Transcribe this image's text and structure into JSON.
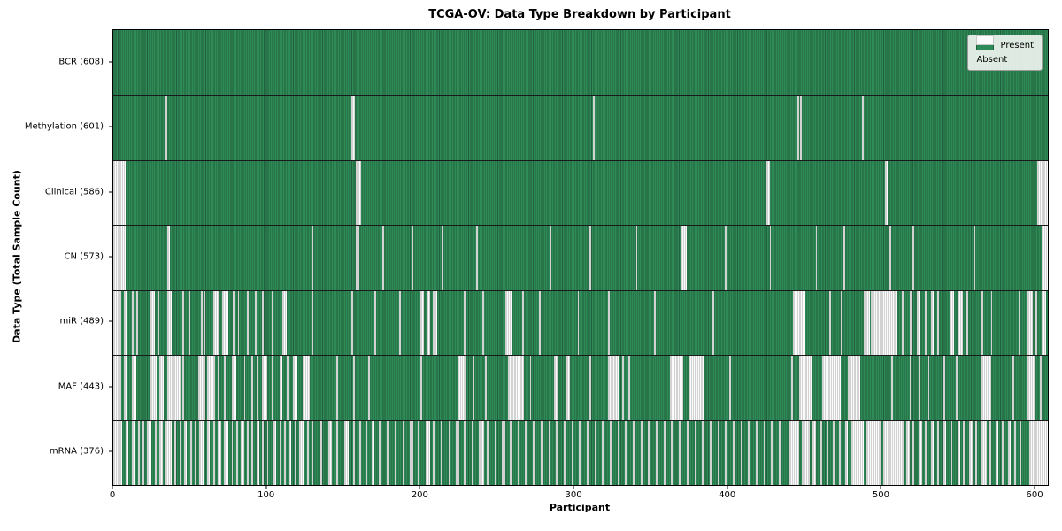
{
  "title": "TCGA-OV: Data Type Breakdown by Participant",
  "axes": {
    "xlabel": "Participant",
    "ylabel": "Data Type (Total Sample Count)",
    "x_ticks": [
      "0",
      "100",
      "200",
      "300",
      "400",
      "500",
      "600"
    ],
    "x_tick_values": [
      0,
      100,
      200,
      300,
      400,
      500,
      600
    ],
    "x_max": 608
  },
  "legend": {
    "items": [
      {
        "label": "Present",
        "color": "#2e8b57"
      },
      {
        "label": "Absent",
        "color": "#ffffff"
      }
    ]
  },
  "colors": {
    "present": "#2e8b57",
    "present_edge": "#215f3e",
    "absent": "#fbfbfb",
    "absent_edge": "#a8a8a8",
    "row_separator": "#1a1a1a",
    "spine": "#000000"
  },
  "chart_data": {
    "type": "heatmap",
    "title": "TCGA-OV: Data Type Breakdown by Participant",
    "xlabel": "Participant",
    "ylabel": "Data Type (Total Sample Count)",
    "x_range": [
      0,
      608
    ],
    "total_participants": 608,
    "legend": [
      "Present",
      "Absent"
    ],
    "legend_position": "upper right",
    "rows": [
      {
        "name": "BCR",
        "label": "BCR (608)",
        "present_count": 608,
        "absent_count": 0,
        "absent_runs": []
      },
      {
        "name": "Methylation",
        "label": "Methylation (601)",
        "present_count": 601,
        "absent_count": 7,
        "absent_runs": [
          [
            34,
            1
          ],
          [
            155,
            2
          ],
          [
            312,
            1
          ],
          [
            445,
            1
          ],
          [
            447,
            1
          ],
          [
            487,
            1
          ]
        ]
      },
      {
        "name": "Clinical",
        "label": "Clinical (586)",
        "present_count": 586,
        "absent_count": 22,
        "absent_runs": [
          [
            0,
            8
          ],
          [
            158,
            3
          ],
          [
            425,
            2
          ],
          [
            502,
            2
          ],
          [
            601,
            7
          ]
        ]
      },
      {
        "name": "CN",
        "label": "CN (573)",
        "present_count": 573,
        "absent_count": 35,
        "absent_runs": [
          [
            0,
            8
          ],
          [
            35,
            2
          ],
          [
            129,
            1
          ],
          [
            158,
            2
          ],
          [
            175,
            1
          ],
          [
            194,
            1
          ],
          [
            214,
            1
          ],
          [
            236,
            1
          ],
          [
            284,
            1
          ],
          [
            310,
            1
          ],
          [
            340,
            1
          ],
          [
            369,
            4
          ],
          [
            398,
            1
          ],
          [
            427,
            1
          ],
          [
            457,
            1
          ],
          [
            475,
            1
          ],
          [
            505,
            1
          ],
          [
            520,
            1
          ],
          [
            560,
            1
          ],
          [
            604,
            4
          ]
        ]
      },
      {
        "name": "miR",
        "label": "miR (489)",
        "present_count": 489,
        "absent_count": 119,
        "absent_runs": [
          [
            0,
            5
          ],
          [
            7,
            2
          ],
          [
            12,
            1
          ],
          [
            15,
            1
          ],
          [
            24,
            3
          ],
          [
            29,
            1
          ],
          [
            35,
            3
          ],
          [
            45,
            1
          ],
          [
            49,
            1
          ],
          [
            57,
            1
          ],
          [
            59,
            1
          ],
          [
            65,
            4
          ],
          [
            71,
            4
          ],
          [
            78,
            1
          ],
          [
            81,
            1
          ],
          [
            87,
            1
          ],
          [
            92,
            1
          ],
          [
            97,
            1
          ],
          [
            103,
            1
          ],
          [
            110,
            3
          ],
          [
            129,
            1
          ],
          [
            155,
            1
          ],
          [
            170,
            1
          ],
          [
            186,
            1
          ],
          [
            200,
            2
          ],
          [
            204,
            2
          ],
          [
            208,
            3
          ],
          [
            228,
            1
          ],
          [
            240,
            1
          ],
          [
            255,
            4
          ],
          [
            266,
            1
          ],
          [
            277,
            1
          ],
          [
            302,
            1
          ],
          [
            322,
            1
          ],
          [
            352,
            1
          ],
          [
            390,
            1
          ],
          [
            442,
            8
          ],
          [
            466,
            1
          ],
          [
            473,
            1
          ],
          [
            488,
            4
          ],
          [
            493,
            6
          ],
          [
            500,
            10
          ],
          [
            513,
            2
          ],
          [
            518,
            2
          ],
          [
            523,
            2
          ],
          [
            528,
            1
          ],
          [
            532,
            2
          ],
          [
            536,
            1
          ],
          [
            544,
            3
          ],
          [
            549,
            4
          ],
          [
            555,
            1
          ],
          [
            565,
            1
          ],
          [
            571,
            1
          ],
          [
            579,
            1
          ],
          [
            589,
            1
          ],
          [
            595,
            3
          ],
          [
            600,
            1
          ],
          [
            604,
            3
          ]
        ]
      },
      {
        "name": "MAF",
        "label": "MAF (443)",
        "present_count": 443,
        "absent_count": 165,
        "absent_runs": [
          [
            0,
            5
          ],
          [
            7,
            2
          ],
          [
            12,
            3
          ],
          [
            24,
            4
          ],
          [
            30,
            3
          ],
          [
            35,
            9
          ],
          [
            45,
            1
          ],
          [
            55,
            5
          ],
          [
            61,
            5
          ],
          [
            68,
            1
          ],
          [
            72,
            1
          ],
          [
            77,
            3
          ],
          [
            85,
            1
          ],
          [
            90,
            1
          ],
          [
            93,
            1
          ],
          [
            97,
            3
          ],
          [
            103,
            1
          ],
          [
            108,
            2
          ],
          [
            113,
            1
          ],
          [
            117,
            3
          ],
          [
            123,
            5
          ],
          [
            145,
            1
          ],
          [
            156,
            1
          ],
          [
            166,
            1
          ],
          [
            200,
            1
          ],
          [
            224,
            5
          ],
          [
            234,
            1
          ],
          [
            242,
            1
          ],
          [
            257,
            10
          ],
          [
            271,
            1
          ],
          [
            287,
            2
          ],
          [
            295,
            2
          ],
          [
            310,
            1
          ],
          [
            322,
            7
          ],
          [
            331,
            1
          ],
          [
            335,
            1
          ],
          [
            362,
            9
          ],
          [
            374,
            10
          ],
          [
            401,
            1
          ],
          [
            441,
            1
          ],
          [
            446,
            9
          ],
          [
            461,
            12
          ],
          [
            478,
            8
          ],
          [
            506,
            1
          ],
          [
            518,
            1
          ],
          [
            524,
            1
          ],
          [
            530,
            1
          ],
          [
            540,
            1
          ],
          [
            548,
            1
          ],
          [
            565,
            6
          ],
          [
            585,
            1
          ],
          [
            595,
            5
          ],
          [
            603,
            1
          ]
        ]
      },
      {
        "name": "mRNA",
        "label": "mRNA (376)",
        "present_count": 376,
        "absent_count": 232,
        "absent_runs": [
          [
            0,
            6
          ],
          [
            8,
            2
          ],
          [
            12,
            2
          ],
          [
            16,
            1
          ],
          [
            19,
            1
          ],
          [
            22,
            3
          ],
          [
            27,
            1
          ],
          [
            30,
            2
          ],
          [
            34,
            4
          ],
          [
            40,
            1
          ],
          [
            43,
            1
          ],
          [
            46,
            2
          ],
          [
            50,
            1
          ],
          [
            53,
            1
          ],
          [
            56,
            3
          ],
          [
            61,
            2
          ],
          [
            65,
            1
          ],
          [
            68,
            2
          ],
          [
            72,
            3
          ],
          [
            77,
            1
          ],
          [
            80,
            1
          ],
          [
            83,
            2
          ],
          [
            87,
            1
          ],
          [
            90,
            1
          ],
          [
            93,
            2
          ],
          [
            97,
            1
          ],
          [
            100,
            1
          ],
          [
            104,
            2
          ],
          [
            108,
            1
          ],
          [
            111,
            1
          ],
          [
            114,
            2
          ],
          [
            118,
            1
          ],
          [
            121,
            3
          ],
          [
            126,
            1
          ],
          [
            129,
            1
          ],
          [
            135,
            1
          ],
          [
            140,
            2
          ],
          [
            145,
            1
          ],
          [
            150,
            3
          ],
          [
            156,
            1
          ],
          [
            160,
            1
          ],
          [
            164,
            1
          ],
          [
            168,
            2
          ],
          [
            173,
            1
          ],
          [
            178,
            1
          ],
          [
            183,
            1
          ],
          [
            188,
            1
          ],
          [
            193,
            2
          ],
          [
            198,
            1
          ],
          [
            203,
            3
          ],
          [
            208,
            1
          ],
          [
            213,
            1
          ],
          [
            218,
            1
          ],
          [
            223,
            2
          ],
          [
            228,
            1
          ],
          [
            233,
            1
          ],
          [
            238,
            3
          ],
          [
            243,
            1
          ],
          [
            248,
            1
          ],
          [
            253,
            2
          ],
          [
            258,
            1
          ],
          [
            263,
            1
          ],
          [
            268,
            1
          ],
          [
            273,
            1
          ],
          [
            278,
            2
          ],
          [
            283,
            1
          ],
          [
            288,
            1
          ],
          [
            293,
            1
          ],
          [
            298,
            1
          ],
          [
            303,
            1
          ],
          [
            308,
            2
          ],
          [
            313,
            1
          ],
          [
            318,
            1
          ],
          [
            323,
            2
          ],
          [
            328,
            1
          ],
          [
            333,
            1
          ],
          [
            338,
            1
          ],
          [
            343,
            2
          ],
          [
            348,
            1
          ],
          [
            353,
            1
          ],
          [
            358,
            2
          ],
          [
            363,
            1
          ],
          [
            368,
            1
          ],
          [
            373,
            2
          ],
          [
            378,
            1
          ],
          [
            383,
            1
          ],
          [
            388,
            2
          ],
          [
            393,
            1
          ],
          [
            398,
            1
          ],
          [
            403,
            1
          ],
          [
            408,
            1
          ],
          [
            413,
            1
          ],
          [
            418,
            2
          ],
          [
            423,
            1
          ],
          [
            428,
            1
          ],
          [
            433,
            1
          ],
          [
            440,
            6
          ],
          [
            448,
            5
          ],
          [
            455,
            2
          ],
          [
            460,
            1
          ],
          [
            464,
            1
          ],
          [
            468,
            2
          ],
          [
            472,
            1
          ],
          [
            476,
            2
          ],
          [
            480,
            8
          ],
          [
            490,
            9
          ],
          [
            501,
            13
          ],
          [
            516,
            2
          ],
          [
            520,
            1
          ],
          [
            524,
            2
          ],
          [
            528,
            1
          ],
          [
            532,
            2
          ],
          [
            536,
            1
          ],
          [
            540,
            2
          ],
          [
            545,
            1
          ],
          [
            549,
            2
          ],
          [
            553,
            1
          ],
          [
            557,
            2
          ],
          [
            561,
            1
          ],
          [
            565,
            3
          ],
          [
            570,
            1
          ],
          [
            574,
            2
          ],
          [
            578,
            1
          ],
          [
            582,
            2
          ],
          [
            586,
            1
          ],
          [
            590,
            1
          ],
          [
            596,
            12
          ]
        ]
      }
    ]
  }
}
